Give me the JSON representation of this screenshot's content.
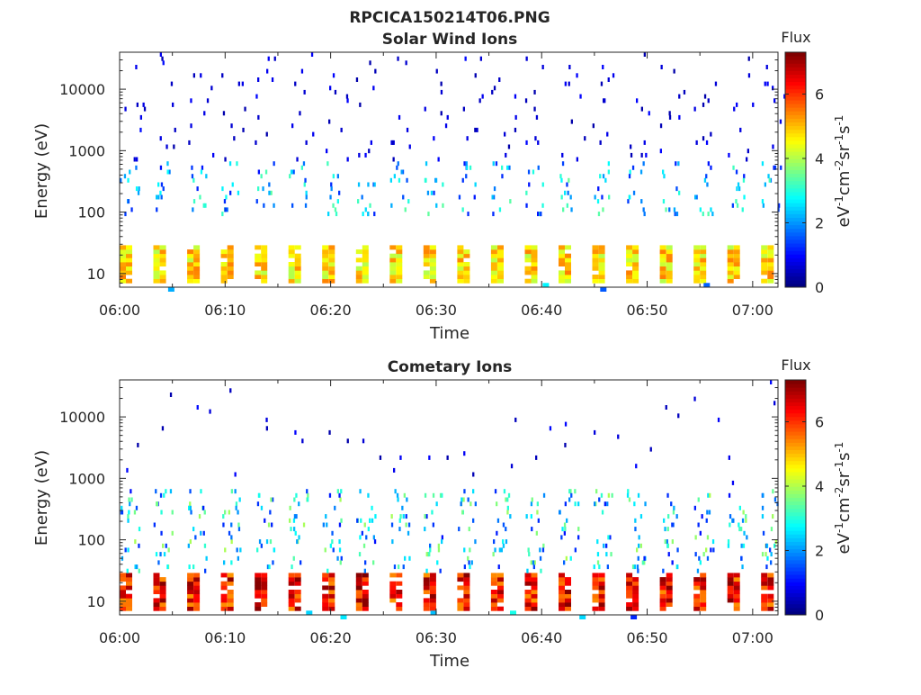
{
  "figure_title": "RPCICA150214T06.PNG",
  "chart_data": [
    {
      "type": "heatmap",
      "title": "Solar Wind Ions",
      "xlabel": "Time",
      "ylabel": "Energy (eV)",
      "x_range": [
        "06:00",
        "07:02"
      ],
      "x_ticks": [
        "06:00",
        "06:10",
        "06:20",
        "06:30",
        "06:40",
        "06:50",
        "07:00"
      ],
      "y_scale": "log",
      "y_range": [
        6,
        40000
      ],
      "y_ticks": [
        "10",
        "100",
        "1000",
        "10000"
      ],
      "colorbar": {
        "title": "Flux",
        "label": "eV-1cm-2sr-1s-1",
        "range": [
          0,
          7.3
        ],
        "ticks": [
          "0",
          "2",
          "4",
          "6"
        ],
        "colormap": "jet"
      },
      "description_values": {
        "low_energy_band_eV": [
          8,
          28
        ],
        "low_energy_flux_typical": [
          4,
          5.5
        ],
        "mid_energy_band_eV": [
          100,
          600
        ],
        "mid_energy_flux_typical": [
          1,
          3.5
        ],
        "high_energy_flux_typical": [
          0.3,
          1
        ],
        "sweep_period_min": 3.2
      }
    },
    {
      "type": "heatmap",
      "title": "Cometary Ions",
      "xlabel": "Time",
      "ylabel": "Energy (eV)",
      "x_range": [
        "06:00",
        "07:02"
      ],
      "x_ticks": [
        "06:00",
        "06:10",
        "06:20",
        "06:30",
        "06:40",
        "06:50",
        "07:00"
      ],
      "y_scale": "log",
      "y_range": [
        6,
        40000
      ],
      "y_ticks": [
        "10",
        "100",
        "1000",
        "10000"
      ],
      "colorbar": {
        "title": "Flux",
        "label": "eV-1cm-2sr-1s-1",
        "range": [
          0,
          7.3
        ],
        "ticks": [
          "0",
          "2",
          "4",
          "6"
        ],
        "colormap": "jet"
      },
      "description_values": {
        "low_energy_band_eV": [
          8,
          28
        ],
        "low_energy_flux_typical": [
          4.5,
          6.5
        ],
        "mid_energy_band_eV": [
          30,
          600
        ],
        "mid_energy_flux_typical": [
          1,
          4
        ],
        "high_energy_flux_typical": [
          0.3,
          1
        ],
        "sweep_period_min": 3.2
      }
    }
  ]
}
